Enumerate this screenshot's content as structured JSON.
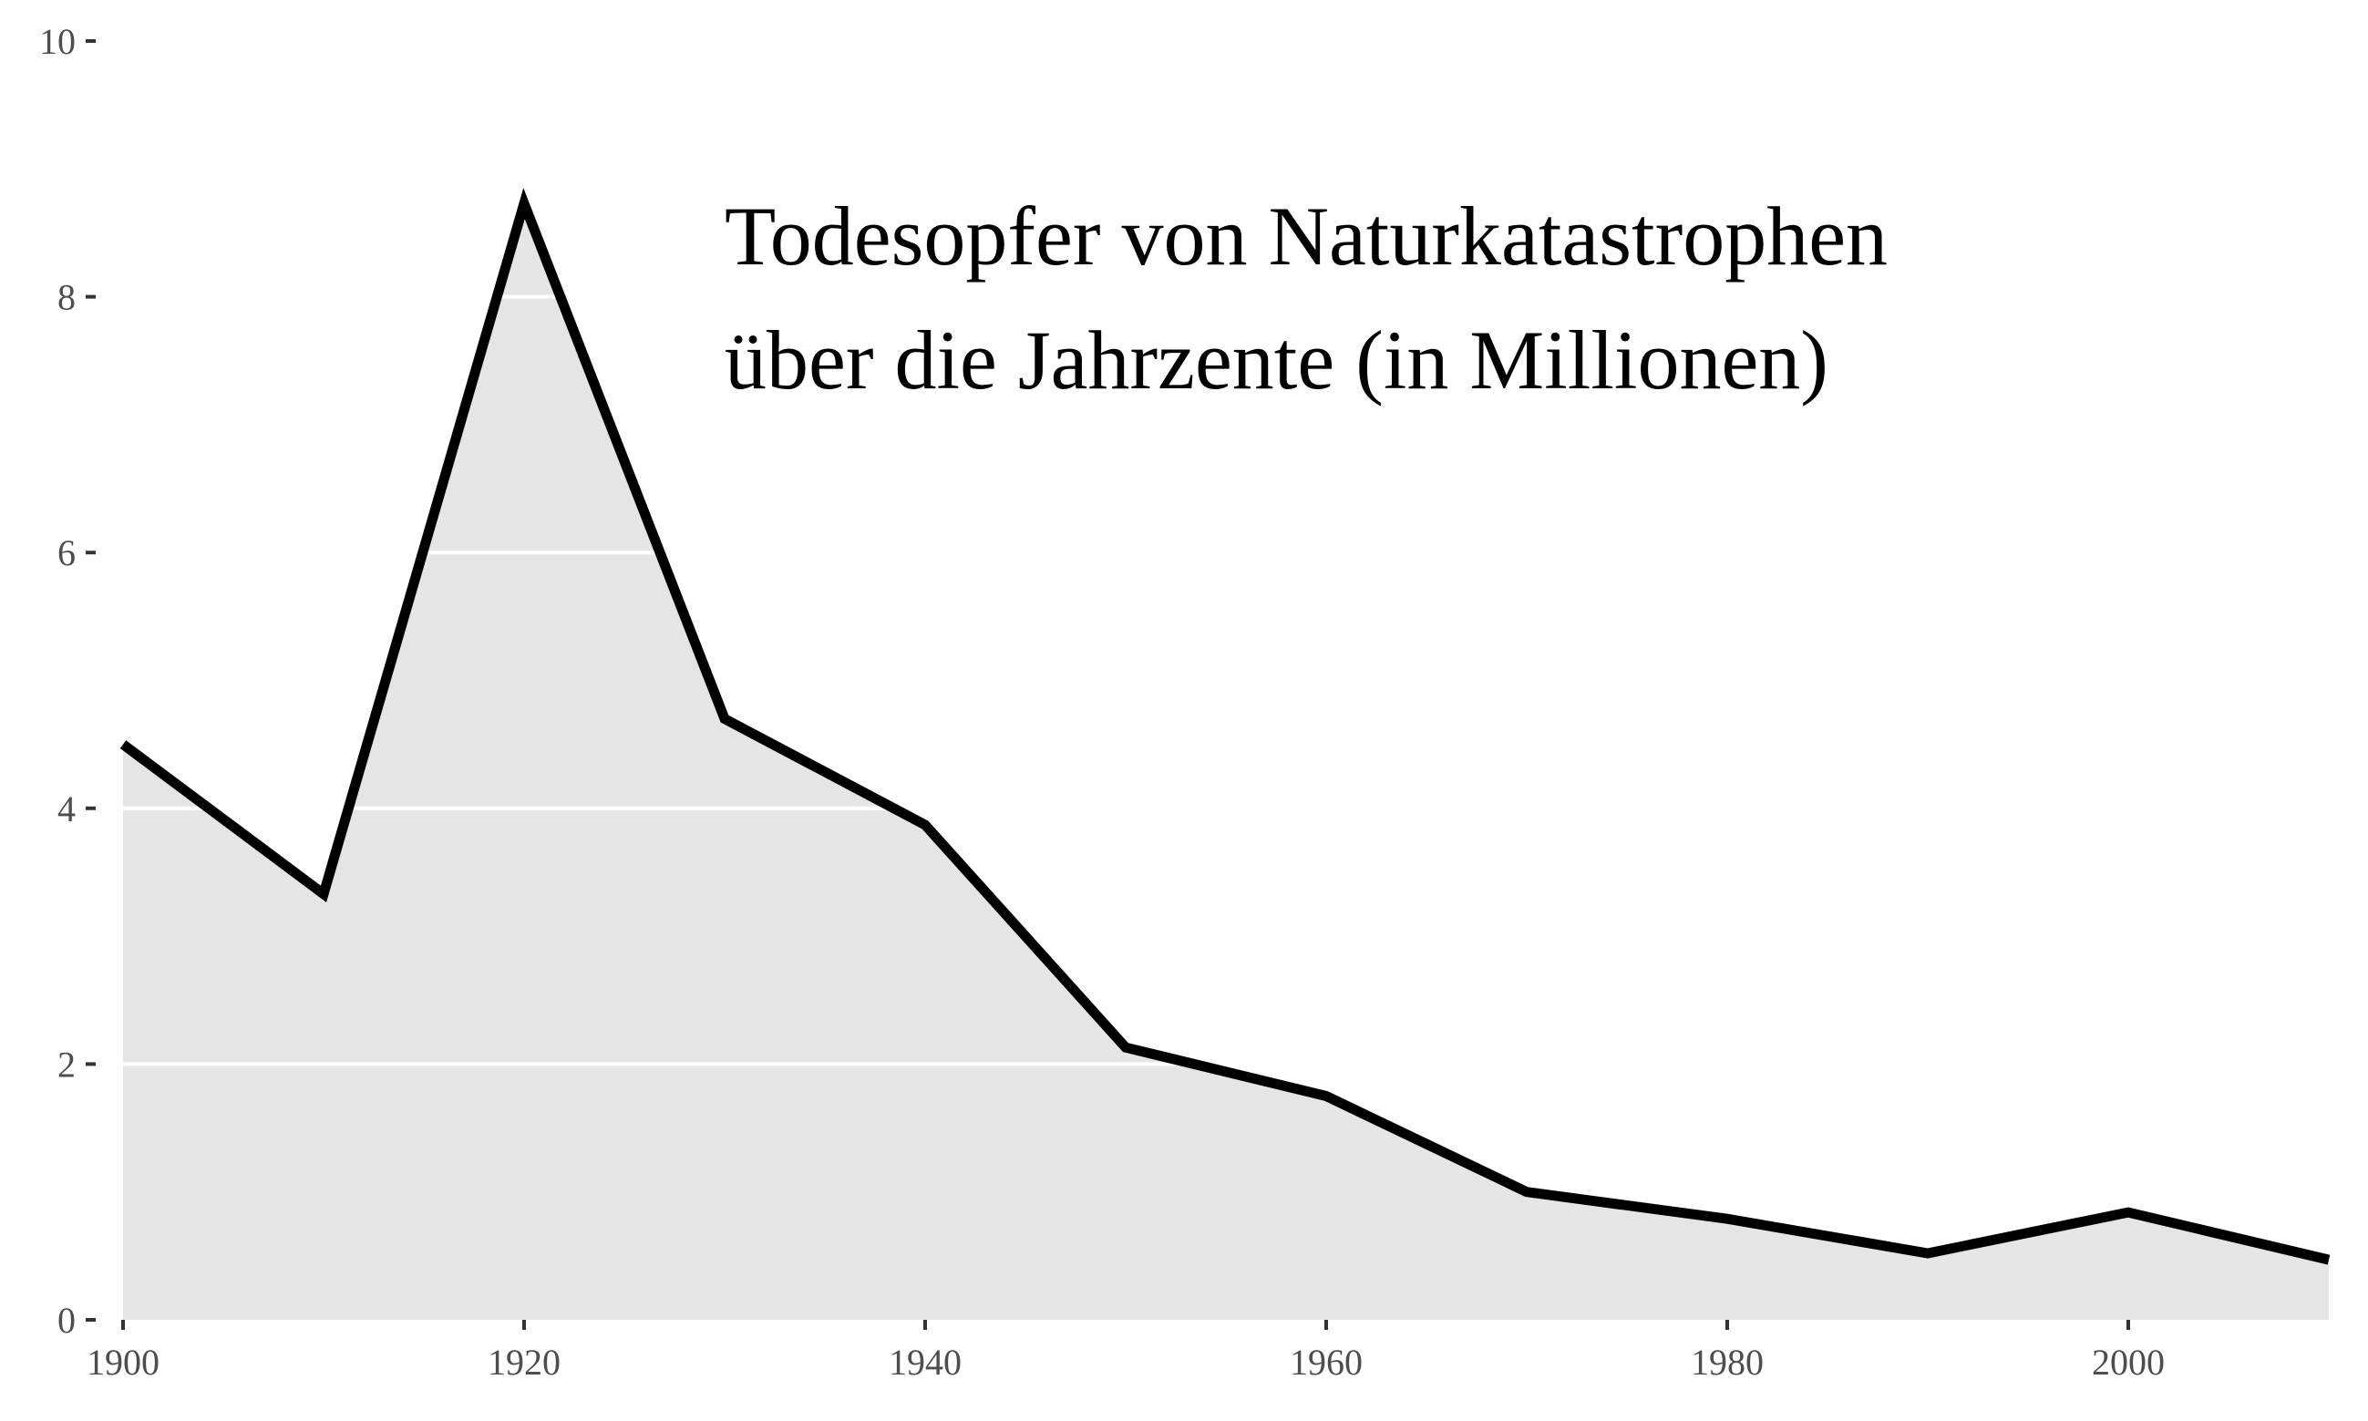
{
  "chart_data": {
    "type": "area",
    "title_lines": [
      "Todesopfer von Naturkatastrophen",
      "über die Jahrzente (in Millionen)"
    ],
    "xlabel": "",
    "ylabel": "",
    "x": [
      1900,
      1910,
      1920,
      1930,
      1940,
      1950,
      1960,
      1970,
      1980,
      1990,
      2000,
      2010
    ],
    "values": [
      4.5,
      3.33,
      8.73,
      4.7,
      3.87,
      2.13,
      1.75,
      1.0,
      0.79,
      0.52,
      0.84,
      0.47
    ],
    "xlim": [
      1900,
      2010
    ],
    "ylim": [
      0,
      10
    ],
    "x_ticks": [
      1900,
      1920,
      1940,
      1960,
      1980,
      2000
    ],
    "x_tick_labels": [
      "1900",
      "1920",
      "1940",
      "1960",
      "1980",
      "2000"
    ],
    "y_ticks": [
      0,
      2,
      4,
      6,
      8,
      10
    ],
    "y_tick_labels": [
      "0",
      "2",
      "4",
      "6",
      "8",
      "10"
    ],
    "grid": "horizontal, drawn only inside the filled area",
    "legend": "none",
    "colors": {
      "area_fill": "#e5e5e5",
      "line": "#000000",
      "gridline": "#ffffff",
      "tick_text": "#4d4d4d",
      "tick_mark": "#333333",
      "title": "#000000"
    }
  }
}
